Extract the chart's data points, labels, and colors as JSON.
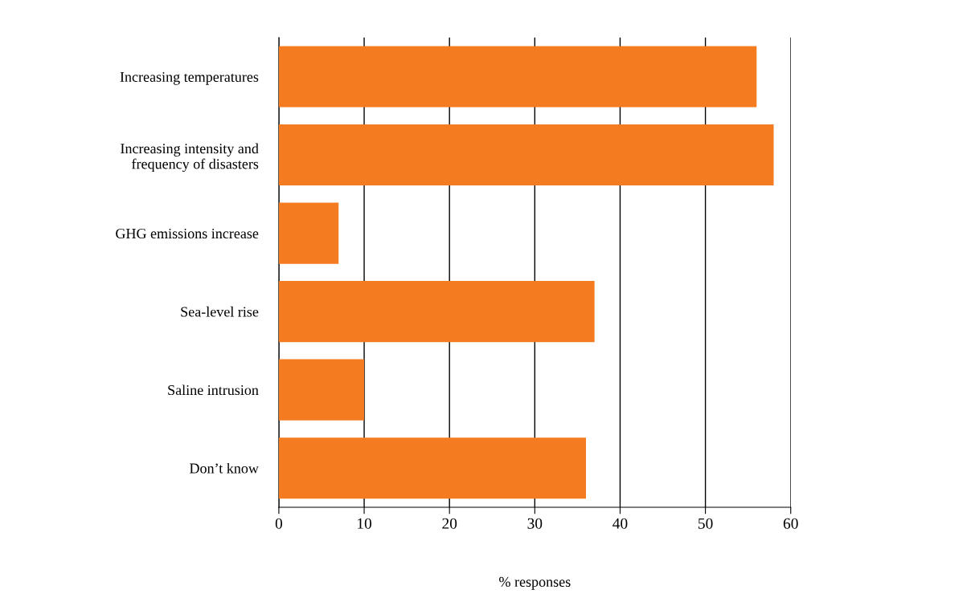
{
  "chart_data": {
    "type": "bar",
    "orientation": "horizontal",
    "xlabel": "% responses",
    "categories": [
      "Increasing temperatures",
      "Increasing intensity and\nfrequency of disasters",
      "GHG emissions increase",
      "Sea-level rise",
      "Saline intrusion",
      "Don’t know"
    ],
    "values": [
      56,
      58,
      7,
      37,
      10,
      36
    ],
    "color": "#f47b20",
    "xlim": [
      0,
      60
    ],
    "xticks": [
      0,
      10,
      20,
      30,
      40,
      50,
      60
    ],
    "grid": "x"
  }
}
